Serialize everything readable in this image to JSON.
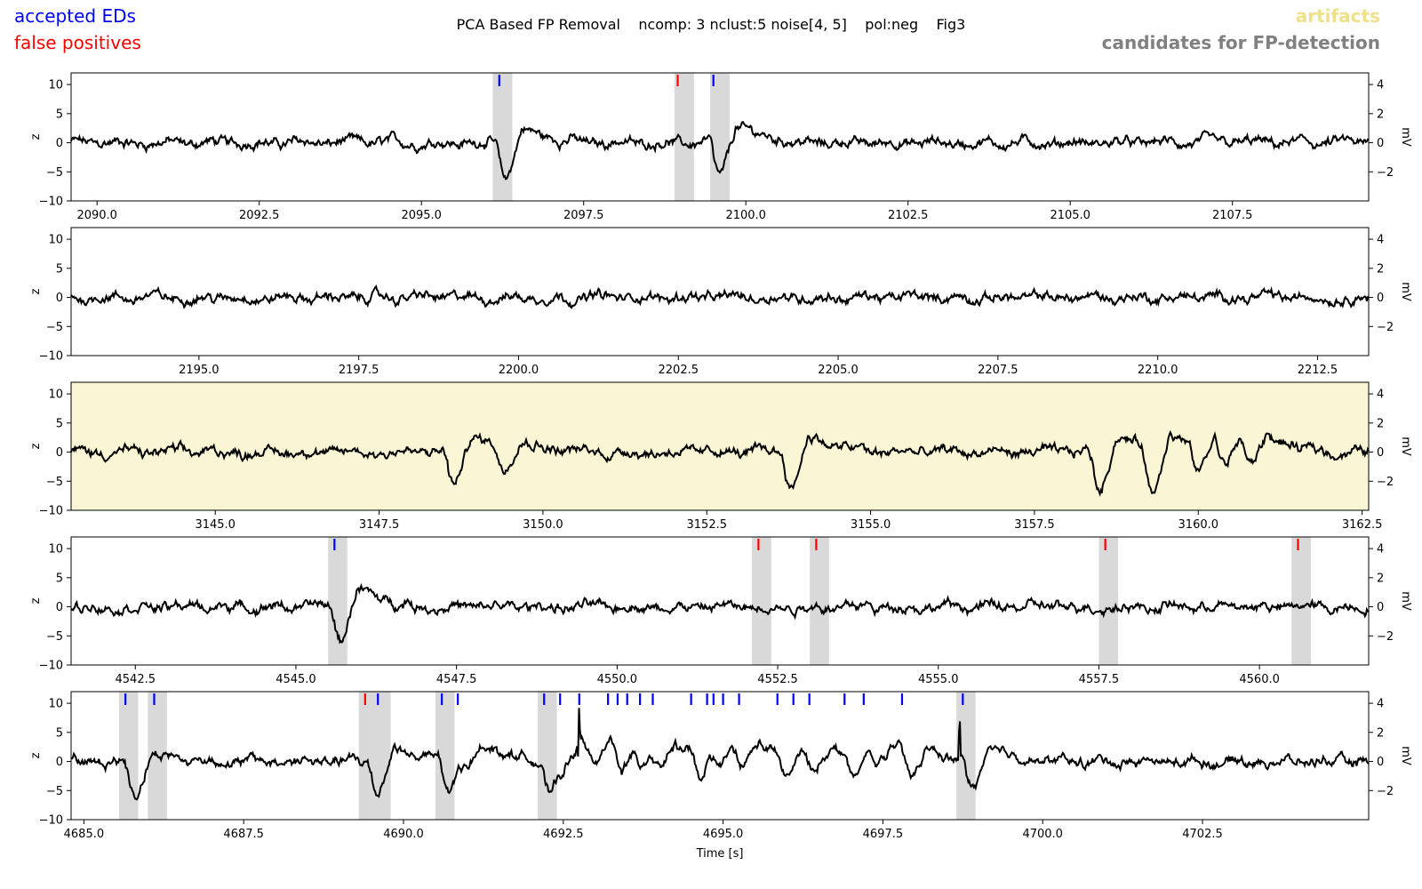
{
  "figure": {
    "title": "PCA Based FP Removal    ncomp: 3 nclust:5 noise[4, 5]    pol:neg    Fig3",
    "legend": {
      "accepted": {
        "label": "accepted EDs",
        "color": "#0000ff"
      },
      "false_positives": {
        "label": "false positives",
        "color": "#ff0000"
      },
      "artifacts": {
        "label": "artifacts",
        "color": "#efe08a"
      },
      "candidates": {
        "label": "candidates for FP-detection",
        "color": "#808080"
      }
    },
    "xlabel": "Time [s]",
    "ylabel_left": "z",
    "ylabel_right": "mV",
    "colors": {
      "trace": "#000000",
      "candidate_span": "#d9d9d9",
      "artifact_bg": "#f9f5d5"
    }
  },
  "chart_data": [
    {
      "type": "line",
      "xlim": [
        2089.6,
        2109.6
      ],
      "ylim": [
        -10,
        12
      ],
      "y2lim": [
        -4.0,
        4.8
      ],
      "xticks": [
        "2090.0",
        "2092.5",
        "2095.0",
        "2097.5",
        "2100.0",
        "2102.5",
        "2105.0",
        "2107.5"
      ],
      "yticks": [
        "10",
        "5",
        "0",
        "−5",
        "−10"
      ],
      "y2ticks": [
        "4",
        "2",
        "0",
        "−2"
      ],
      "artifact": false,
      "candidate_spans": [
        [
          2096.1,
          2096.4
        ],
        [
          2098.9,
          2099.2
        ],
        [
          2099.45,
          2099.75
        ]
      ],
      "accepted": [
        2096.2,
        2099.5
      ],
      "false_positives": [
        2098.95
      ],
      "events": [
        {
          "t": 2096.2,
          "depth": -6.2,
          "recovery": 2.5
        },
        {
          "t": 2099.5,
          "depth": -6.0,
          "recovery": 3.0
        }
      ]
    },
    {
      "type": "line",
      "xlim": [
        2193.0,
        2213.3
      ],
      "ylim": [
        -10,
        12
      ],
      "y2lim": [
        -4.0,
        4.8
      ],
      "xticks": [
        "2195.0",
        "2197.5",
        "2200.0",
        "2202.5",
        "2205.0",
        "2207.5",
        "2210.0",
        "2212.5"
      ],
      "yticks": [
        "10",
        "5",
        "0",
        "−5",
        "−10"
      ],
      "y2ticks": [
        "4",
        "2",
        "0",
        "−2"
      ],
      "artifact": false,
      "candidate_spans": [],
      "accepted": [],
      "false_positives": [],
      "events": []
    },
    {
      "type": "line",
      "xlim": [
        3142.8,
        3162.6
      ],
      "ylim": [
        -10,
        12
      ],
      "y2lim": [
        -4.0,
        4.8
      ],
      "xticks": [
        "3145.0",
        "3147.5",
        "3150.0",
        "3152.5",
        "3155.0",
        "3157.5",
        "3160.0",
        "3162.5"
      ],
      "yticks": [
        "10",
        "5",
        "0",
        "−5",
        "−10"
      ],
      "y2ticks": [
        "4",
        "2",
        "0",
        "−2"
      ],
      "artifact": true,
      "candidate_spans": [],
      "accepted": [],
      "false_positives": [],
      "events": [
        {
          "t": 3148.55,
          "depth": -5.8,
          "recovery": 3.0
        },
        {
          "t": 3149.3,
          "depth": -4.0,
          "recovery": 2.0
        },
        {
          "t": 3153.7,
          "depth": -6.0,
          "recovery": 2.8
        },
        {
          "t": 3158.4,
          "depth": -6.5,
          "recovery": 2.8
        },
        {
          "t": 3159.2,
          "depth": -7.6,
          "recovery": 2.8
        },
        {
          "t": 3159.9,
          "depth": -4.0,
          "recovery": 2.3
        },
        {
          "t": 3160.3,
          "depth": -4.2,
          "recovery": 2.0
        },
        {
          "t": 3160.7,
          "depth": -4.0,
          "recovery": 1.8
        }
      ]
    },
    {
      "type": "line",
      "xlim": [
        4541.5,
        4561.7
      ],
      "ylim": [
        -10,
        12
      ],
      "y2lim": [
        -4.0,
        4.8
      ],
      "xticks": [
        "4542.5",
        "4545.0",
        "4547.5",
        "4550.0",
        "4552.5",
        "4555.0",
        "4557.5",
        "4560.0"
      ],
      "yticks": [
        "10",
        "5",
        "0",
        "−5",
        "−10"
      ],
      "y2ticks": [
        "4",
        "2",
        "0",
        "−2"
      ],
      "artifact": false,
      "candidate_spans": [
        [
          4545.5,
          4545.8
        ],
        [
          4552.1,
          4552.4
        ],
        [
          4553.0,
          4553.3
        ],
        [
          4557.5,
          4557.8
        ],
        [
          4560.5,
          4560.8
        ]
      ],
      "accepted": [
        4545.6
      ],
      "false_positives": [
        4552.2,
        4553.1,
        4557.6,
        4560.6
      ],
      "events": [
        {
          "t": 4545.6,
          "depth": -5.8,
          "recovery": 3.2
        }
      ]
    },
    {
      "type": "line",
      "xlim": [
        4684.8,
        4705.1
      ],
      "ylim": [
        -10,
        12
      ],
      "y2lim": [
        -4.0,
        4.8
      ],
      "xticks": [
        "4685.0",
        "4687.5",
        "4690.0",
        "4692.5",
        "4695.0",
        "4697.5",
        "4700.0",
        "4702.5"
      ],
      "yticks": [
        "10",
        "5",
        "0",
        "−5",
        "−10"
      ],
      "y2ticks": [
        "4",
        "2",
        "0",
        "−2"
      ],
      "artifact": false,
      "candidate_spans": [
        [
          4685.55,
          4685.85
        ],
        [
          4686.0,
          4686.3
        ],
        [
          4689.3,
          4689.8
        ],
        [
          4690.5,
          4690.8
        ],
        [
          4692.1,
          4692.4
        ],
        [
          4698.65,
          4698.95
        ]
      ],
      "accepted": [
        4685.65,
        4686.1,
        4689.6,
        4690.6,
        4690.85,
        4692.2,
        4692.45,
        4692.75,
        4693.2,
        4693.35,
        4693.5,
        4693.7,
        4693.9,
        4694.5,
        4694.75,
        4694.85,
        4695.0,
        4695.25,
        4695.85,
        4696.1,
        4696.35,
        4696.9,
        4697.2,
        4697.8,
        4698.75
      ],
      "false_positives": [
        4689.4
      ],
      "events": [
        {
          "t": 4685.7,
          "depth": -5.8,
          "recovery": 1.5
        },
        {
          "t": 4689.5,
          "depth": -5.5,
          "recovery": 2.5
        },
        {
          "t": 4690.6,
          "depth": -5.5,
          "recovery": 2.2
        },
        {
          "t": 4690.9,
          "depth": -3.5,
          "recovery": 2.0
        },
        {
          "t": 4692.2,
          "depth": -5.5,
          "recovery": 2.0
        },
        {
          "t": 4692.45,
          "depth": -2.5,
          "recovery": 3.0
        },
        {
          "t": 4692.9,
          "depth": -3.0,
          "recovery": 2.0
        },
        {
          "t": 4693.3,
          "depth": -3.5,
          "recovery": 2.0
        },
        {
          "t": 4693.6,
          "depth": -3.0,
          "recovery": 1.8
        },
        {
          "t": 4693.9,
          "depth": -3.5,
          "recovery": 1.8
        },
        {
          "t": 4694.55,
          "depth": -4.5,
          "recovery": 2.0
        },
        {
          "t": 4694.85,
          "depth": -2.5,
          "recovery": 1.8
        },
        {
          "t": 4695.2,
          "depth": -3.5,
          "recovery": 2.0
        },
        {
          "t": 4695.9,
          "depth": -4.0,
          "recovery": 1.8
        },
        {
          "t": 4696.3,
          "depth": -3.0,
          "recovery": 1.5
        },
        {
          "t": 4696.95,
          "depth": -3.5,
          "recovery": 2.0
        },
        {
          "t": 4697.3,
          "depth": -2.5,
          "recovery": 1.8
        },
        {
          "t": 4697.85,
          "depth": -4.0,
          "recovery": 1.5
        },
        {
          "t": 4698.8,
          "depth": -5.2,
          "recovery": 2.0
        }
      ],
      "spike": {
        "t": 4692.75,
        "peak": 11.5
      },
      "spike2": {
        "t": 4698.7,
        "peak": 9.5
      }
    }
  ]
}
